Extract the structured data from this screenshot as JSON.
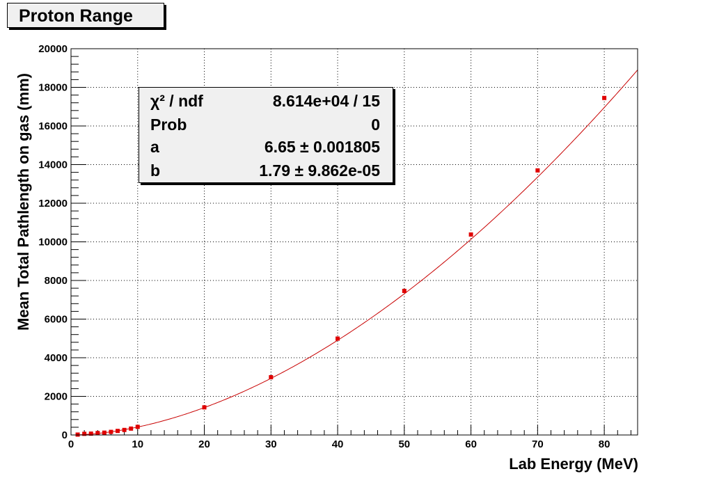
{
  "title": "Proton Range",
  "stats": [
    {
      "name": "χ² / ndf",
      "value": "8.614e+04 / 15"
    },
    {
      "name": "Prob",
      "value": "0"
    },
    {
      "name": "a",
      "value": "6.65 ± 0.001805"
    },
    {
      "name": "b",
      "value": "1.79 ± 9.862e-05"
    }
  ],
  "colors": {
    "marker": "#e00000",
    "fit": "#c80000",
    "frame": "#000000",
    "grid": "#000000"
  },
  "chart_data": {
    "type": "scatter",
    "xlabel": "Lab Energy (MeV)",
    "ylabel": "Mean Total Pathlength on gas (mm)",
    "xlim": [
      0,
      85
    ],
    "ylim": [
      0,
      20000
    ],
    "xticks": [
      0,
      10,
      20,
      30,
      40,
      50,
      60,
      70,
      80
    ],
    "yticks": [
      0,
      2000,
      4000,
      6000,
      8000,
      10000,
      12000,
      14000,
      16000,
      18000,
      20000
    ],
    "grid": true,
    "series": [
      {
        "x": [
          1,
          2,
          3,
          4,
          5,
          6,
          7,
          8,
          9,
          10,
          20,
          30,
          40,
          50,
          60,
          70,
          80
        ],
        "y": [
          20,
          60,
          70,
          100,
          120,
          160,
          210,
          260,
          330,
          420,
          1430,
          2990,
          4990,
          7460,
          10380,
          13700,
          17450
        ]
      }
    ],
    "fit": {
      "formula": "a*x^b",
      "a": 6.65,
      "b": 1.79,
      "x_range": [
        1,
        85
      ]
    }
  }
}
